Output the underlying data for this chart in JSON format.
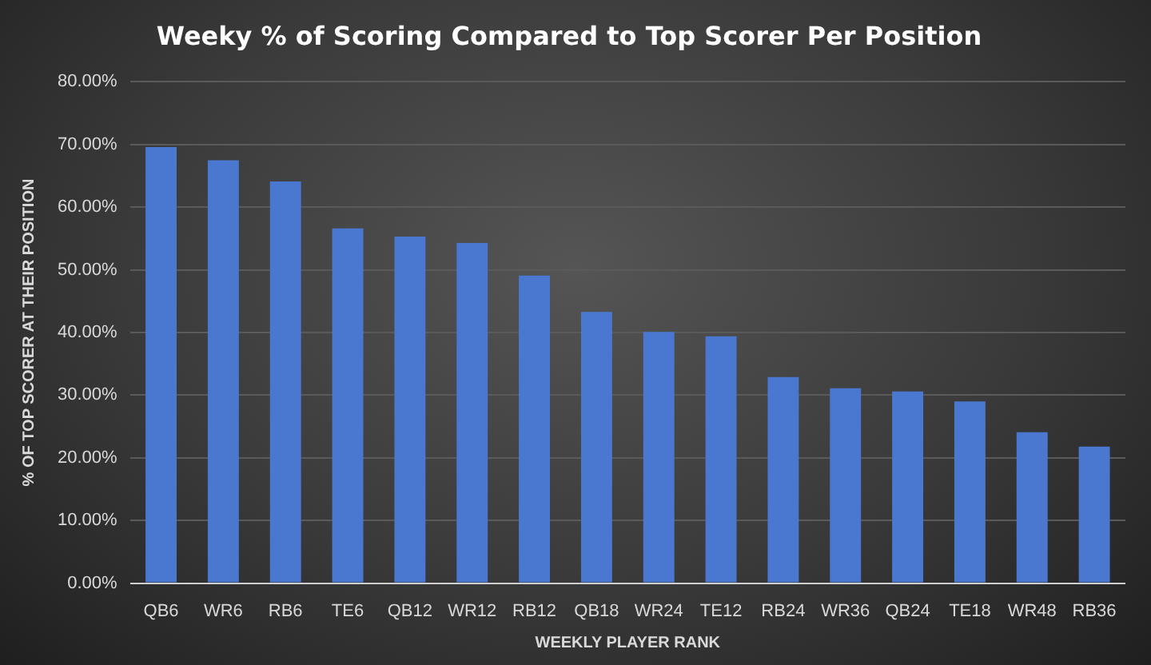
{
  "chart_data": {
    "type": "bar",
    "title": "Weeky % of Scoring Compared to Top Scorer Per Position",
    "xlabel": "WEEKLY PLAYER RANK",
    "ylabel": "% OF TOP SCORER AT THEIR POSITION",
    "categories": [
      "QB6",
      "WR6",
      "RB6",
      "TE6",
      "QB12",
      "WR12",
      "RB12",
      "QB18",
      "WR24",
      "TE12",
      "RB24",
      "WR36",
      "QB24",
      "TE18",
      "WR48",
      "RB36"
    ],
    "values": [
      69.6,
      67.5,
      64.1,
      56.6,
      55.3,
      54.3,
      49.1,
      43.3,
      40.1,
      39.4,
      32.9,
      31.1,
      30.6,
      29.0,
      24.1,
      21.8
    ],
    "color": "#4a78d0",
    "ylim": [
      0,
      80
    ],
    "yticks": [
      {
        "value": 0,
        "label": "0.00%"
      },
      {
        "value": 10,
        "label": "10.00%"
      },
      {
        "value": 20,
        "label": "20.00%"
      },
      {
        "value": 30,
        "label": "30.00%"
      },
      {
        "value": 40,
        "label": "40.00%"
      },
      {
        "value": 50,
        "label": "50.00%"
      },
      {
        "value": 60,
        "label": "60.00%"
      },
      {
        "value": 70,
        "label": "70.00%"
      },
      {
        "value": 80,
        "label": "80.00%"
      }
    ],
    "grid": "y",
    "legend": false
  }
}
